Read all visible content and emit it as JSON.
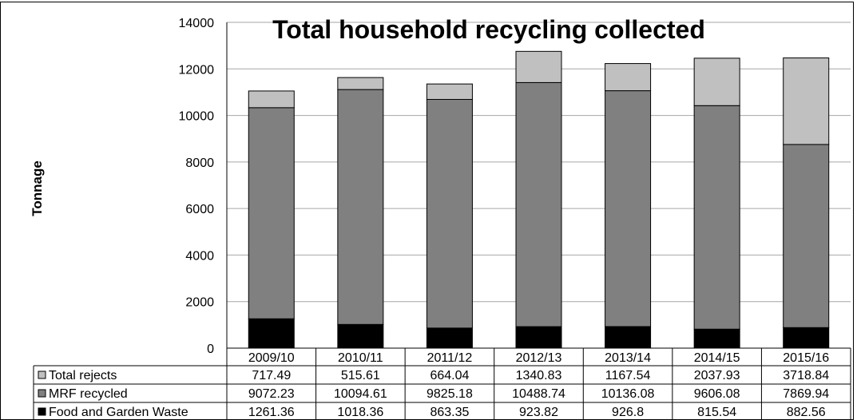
{
  "chart_data": {
    "type": "bar",
    "stacked": true,
    "title": "Total household recycling collected",
    "xlabel": "",
    "ylabel": "Tonnage",
    "ylim": [
      0,
      14000
    ],
    "yticks": [
      "0",
      "2000",
      "4000",
      "6000",
      "8000",
      "10000",
      "12000",
      "14000"
    ],
    "grid": true,
    "legend": "data-table-left",
    "categories": [
      "2009/10",
      "2010/11",
      "2011/12",
      "2012/13",
      "2013/14",
      "2014/15",
      "2015/16"
    ],
    "series": [
      {
        "name": "Food and Garden Waste",
        "color": "#000000",
        "values": [
          1261.36,
          1018.36,
          863.35,
          923.82,
          926.8,
          815.54,
          882.56
        ],
        "labels": [
          "1261.36",
          "1018.36",
          "863.35",
          "923.82",
          "926.8",
          "815.54",
          "882.56"
        ]
      },
      {
        "name": "MRF recycled",
        "color": "#808080",
        "values": [
          9072.23,
          10094.61,
          9825.18,
          10488.74,
          10136.08,
          9606.08,
          7869.94
        ],
        "labels": [
          "9072.23",
          "10094.61",
          "9825.18",
          "10488.74",
          "10136.08",
          "9606.08",
          "7869.94"
        ]
      },
      {
        "name": "Total rejects",
        "color": "#c0c0c0",
        "values": [
          717.49,
          515.61,
          664.04,
          1340.83,
          1167.54,
          2037.93,
          3718.84
        ],
        "labels": [
          "717.49",
          "515.61",
          "664.04",
          "1340.83",
          "1167.54",
          "2037.93",
          "3718.84"
        ]
      }
    ],
    "table_row_order": [
      "Total rejects",
      "MRF recycled",
      "Food and Garden Waste"
    ]
  }
}
